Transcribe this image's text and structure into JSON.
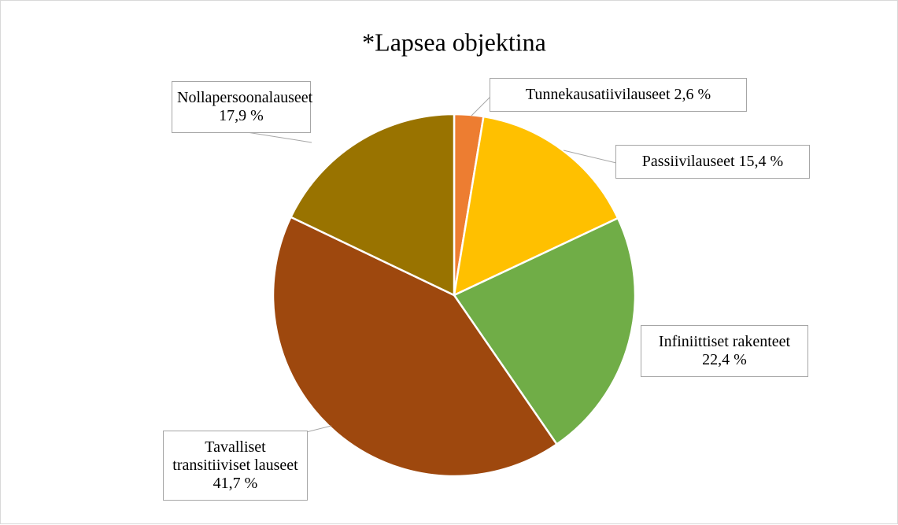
{
  "chart_data": {
    "type": "pie",
    "title": "*Lapsea objektina",
    "categories": [
      "Tunnekausatiivilauseet",
      "Passiivilauseet",
      "Infiniittiset rakenteet",
      "Tavalliset transitiiviset lauseet",
      "Nollapersoonalauseet"
    ],
    "values": [
      2.6,
      15.4,
      22.4,
      41.7,
      17.9
    ],
    "value_labels": [
      "2,6 %",
      "15,4 %",
      "22,4 %",
      "41,7 %",
      "17,9 %"
    ],
    "colors": [
      "#ed7d31",
      "#ffc000",
      "#70ad47",
      "#9e480e",
      "#997300"
    ]
  }
}
